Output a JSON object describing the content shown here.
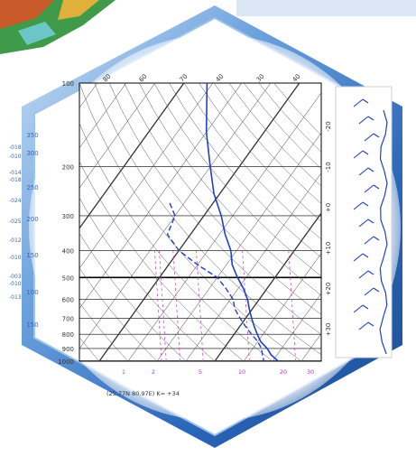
{
  "colors": {
    "frame_blue": "#2a66b8",
    "frame_light": "#9fc4ec",
    "bar_top": "#dbe6f4",
    "temperature_line": "#1f3fd0",
    "dewpoint_line": "#1f3fd0",
    "mixing_ratio_line": "#cc33cc",
    "isobar": "#000000",
    "grid": "#333333"
  },
  "chart_data": {
    "type": "line",
    "title": "",
    "xlabel": "",
    "ylabel": "",
    "pressure_axis_labels": [
      "100",
      "200",
      "300",
      "400",
      "500",
      "600",
      "700",
      "800",
      "900",
      "1000"
    ],
    "height_axis_labels": [
      "350",
      "300",
      "250",
      "200",
      "150",
      "100",
      "150"
    ],
    "temperature_top_labels": [
      "80",
      "60",
      "70",
      "40",
      "30",
      "40"
    ],
    "right_axis_labels": [
      "-20",
      "-10",
      "+0",
      "+10",
      "+20",
      "+30"
    ],
    "mixing_ratio_labels": [
      "1",
      "2",
      "5",
      "10",
      "20",
      "30"
    ],
    "left_side_codes": [
      "-018",
      "-010",
      "-014",
      "-018",
      "-024",
      "-025",
      "-012",
      "-010",
      "-003",
      "-010",
      "-013"
    ],
    "station_info": "(25.77N 80.97E)  K= +34",
    "series": [
      {
        "values": [
          [
            100,
            -72
          ],
          [
            150,
            -60
          ],
          [
            200,
            -50
          ],
          [
            250,
            -42
          ],
          [
            300,
            -34
          ],
          [
            350,
            -28
          ],
          [
            400,
            -22
          ],
          [
            450,
            -18
          ],
          [
            500,
            -13
          ],
          [
            550,
            -8
          ],
          [
            600,
            -4
          ],
          [
            650,
            -1
          ],
          [
            700,
            2
          ],
          [
            750,
            5
          ],
          [
            800,
            8
          ],
          [
            850,
            11
          ],
          [
            900,
            15
          ],
          [
            950,
            18
          ],
          [
            1000,
            22
          ]
        ]
      },
      {
        "values": [
          [
            270,
            -55
          ],
          [
            300,
            -50
          ],
          [
            350,
            -48
          ],
          [
            400,
            -40
          ],
          [
            450,
            -30
          ],
          [
            500,
            -20
          ],
          [
            550,
            -14
          ],
          [
            600,
            -9
          ],
          [
            650,
            -6
          ],
          [
            700,
            -2
          ],
          [
            750,
            2
          ],
          [
            800,
            6
          ],
          [
            850,
            10
          ],
          [
            900,
            13
          ],
          [
            950,
            15
          ],
          [
            1000,
            17
          ]
        ]
      }
    ],
    "grid": true,
    "yscale": "log-pressure"
  }
}
